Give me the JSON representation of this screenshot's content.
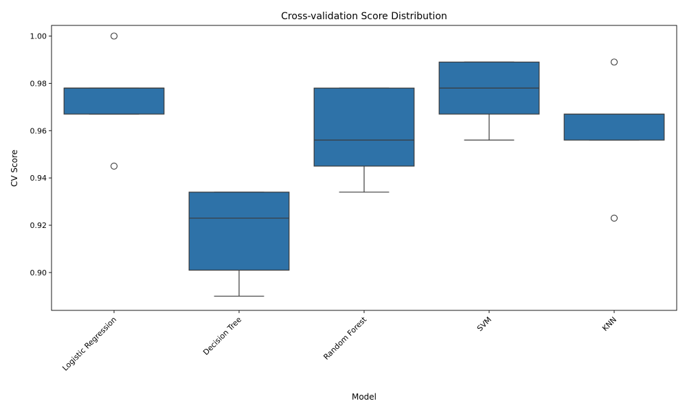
{
  "chart_data": {
    "type": "box",
    "title": "Cross-validation Score Distribution",
    "xlabel": "Model",
    "ylabel": "CV Score",
    "ylim": [
      0.884,
      1.0045
    ],
    "yticks": [
      "0.90",
      "0.92",
      "0.94",
      "0.96",
      "0.98",
      "1.00"
    ],
    "ytick_values": [
      0.9,
      0.92,
      0.94,
      0.96,
      0.98,
      1.0
    ],
    "grid": false,
    "box_color": "#2e72a8",
    "edge_color": "#3a3a3a",
    "categories": [
      "Logistic Regression",
      "Decision Tree",
      "Random Forest",
      "SVM",
      "KNN"
    ],
    "boxes": [
      {
        "category": "Logistic Regression",
        "whislo": 0.967,
        "q1": 0.967,
        "median": 0.978,
        "q3": 0.978,
        "whishi": 0.978,
        "fliers": [
          1.0,
          0.945
        ]
      },
      {
        "category": "Decision Tree",
        "whislo": 0.89,
        "q1": 0.901,
        "median": 0.923,
        "q3": 0.934,
        "whishi": 0.934,
        "fliers": []
      },
      {
        "category": "Random Forest",
        "whislo": 0.934,
        "q1": 0.945,
        "median": 0.956,
        "q3": 0.978,
        "whishi": 0.978,
        "fliers": []
      },
      {
        "category": "SVM",
        "whislo": 0.956,
        "q1": 0.967,
        "median": 0.978,
        "q3": 0.989,
        "whishi": 0.989,
        "fliers": []
      },
      {
        "category": "KNN",
        "whislo": 0.956,
        "q1": 0.956,
        "median": 0.967,
        "q3": 0.967,
        "whishi": 0.967,
        "fliers": [
          0.989,
          0.923
        ]
      }
    ]
  }
}
